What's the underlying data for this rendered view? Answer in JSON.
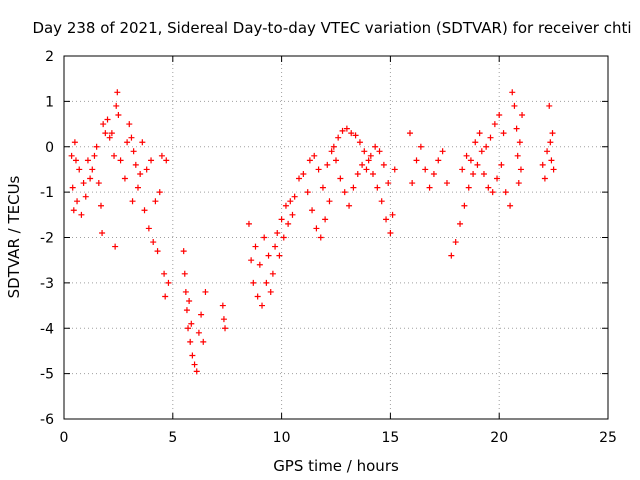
{
  "chart_data": {
    "type": "scatter",
    "title": "Day 238 of 2021, Sidereal Day-to-day VTEC variation (SDTVAR) for receiver chti",
    "xlabel": "GPS time / hours",
    "ylabel": "SDTVAR / TECUs",
    "xlim": [
      0,
      25
    ],
    "ylim": [
      -6,
      2
    ],
    "xticks": [
      0,
      5,
      10,
      15,
      20,
      25
    ],
    "yticks": [
      -6,
      -5,
      -4,
      -3,
      -2,
      -1,
      0,
      1,
      2
    ],
    "xtick_labels": [
      "0",
      "5",
      "10",
      "15",
      "20",
      "25"
    ],
    "ytick_labels": [
      "-6",
      "-5",
      "-4",
      "-3",
      "-2",
      "-1",
      "0",
      "1",
      "2"
    ],
    "grid": true,
    "marker": "+",
    "color": "#ff0000",
    "series": [
      {
        "name": "SDTVAR",
        "points": [
          [
            0.35,
            -0.2
          ],
          [
            0.4,
            -0.9
          ],
          [
            0.45,
            -1.4
          ],
          [
            0.5,
            0.1
          ],
          [
            0.55,
            -0.3
          ],
          [
            0.6,
            -1.2
          ],
          [
            0.7,
            -0.5
          ],
          [
            0.8,
            -1.5
          ],
          [
            0.9,
            -0.8
          ],
          [
            1.0,
            -1.1
          ],
          [
            1.1,
            -0.3
          ],
          [
            1.2,
            -0.7
          ],
          [
            1.3,
            -0.5
          ],
          [
            1.4,
            -0.2
          ],
          [
            1.5,
            0.0
          ],
          [
            1.6,
            -0.8
          ],
          [
            1.7,
            -1.3
          ],
          [
            1.75,
            -1.9
          ],
          [
            1.8,
            0.5
          ],
          [
            1.9,
            0.3
          ],
          [
            2.0,
            0.6
          ],
          [
            2.1,
            0.2
          ],
          [
            2.2,
            0.3
          ],
          [
            2.3,
            -0.2
          ],
          [
            2.35,
            -2.2
          ],
          [
            2.4,
            0.9
          ],
          [
            2.45,
            1.2
          ],
          [
            2.5,
            0.7
          ],
          [
            2.6,
            -0.3
          ],
          [
            2.8,
            -0.7
          ],
          [
            2.9,
            0.1
          ],
          [
            3.0,
            0.5
          ],
          [
            3.1,
            0.2
          ],
          [
            3.15,
            -1.2
          ],
          [
            3.2,
            -0.1
          ],
          [
            3.3,
            -0.4
          ],
          [
            3.4,
            -0.9
          ],
          [
            3.5,
            -0.6
          ],
          [
            3.6,
            0.1
          ],
          [
            3.7,
            -1.4
          ],
          [
            3.8,
            -0.5
          ],
          [
            3.9,
            -1.8
          ],
          [
            4.0,
            -0.3
          ],
          [
            4.1,
            -2.1
          ],
          [
            4.2,
            -1.2
          ],
          [
            4.3,
            -2.3
          ],
          [
            4.4,
            -1.0
          ],
          [
            4.5,
            -0.2
          ],
          [
            4.6,
            -2.8
          ],
          [
            4.65,
            -3.3
          ],
          [
            4.7,
            -0.3
          ],
          [
            4.8,
            -3.0
          ],
          [
            5.5,
            -2.3
          ],
          [
            5.55,
            -2.8
          ],
          [
            5.6,
            -3.2
          ],
          [
            5.65,
            -3.6
          ],
          [
            5.7,
            -4.0
          ],
          [
            5.75,
            -3.4
          ],
          [
            5.8,
            -4.3
          ],
          [
            5.85,
            -3.9
          ],
          [
            5.9,
            -4.6
          ],
          [
            6.0,
            -4.8
          ],
          [
            6.1,
            -4.95
          ],
          [
            6.2,
            -4.1
          ],
          [
            6.3,
            -3.7
          ],
          [
            6.4,
            -4.3
          ],
          [
            6.5,
            -3.2
          ],
          [
            7.3,
            -3.5
          ],
          [
            7.35,
            -3.8
          ],
          [
            7.4,
            -4.0
          ],
          [
            8.5,
            -1.7
          ],
          [
            8.6,
            -2.5
          ],
          [
            8.7,
            -3.0
          ],
          [
            8.8,
            -2.2
          ],
          [
            8.9,
            -3.3
          ],
          [
            9.0,
            -2.6
          ],
          [
            9.1,
            -3.5
          ],
          [
            9.2,
            -2.0
          ],
          [
            9.3,
            -3.0
          ],
          [
            9.4,
            -2.4
          ],
          [
            9.5,
            -3.2
          ],
          [
            9.6,
            -2.8
          ],
          [
            9.7,
            -2.2
          ],
          [
            9.8,
            -1.9
          ],
          [
            9.9,
            -2.4
          ],
          [
            10.0,
            -1.6
          ],
          [
            10.1,
            -2.0
          ],
          [
            10.2,
            -1.3
          ],
          [
            10.3,
            -1.7
          ],
          [
            10.4,
            -1.2
          ],
          [
            10.5,
            -1.5
          ],
          [
            10.6,
            -1.1
          ],
          [
            10.8,
            -0.7
          ],
          [
            11.0,
            -0.6
          ],
          [
            11.2,
            -1.0
          ],
          [
            11.4,
            -1.4
          ],
          [
            11.6,
            -1.8
          ],
          [
            11.8,
            -2.0
          ],
          [
            12.0,
            -1.6
          ],
          [
            12.2,
            -1.2
          ],
          [
            11.3,
            -0.3
          ],
          [
            11.5,
            -0.2
          ],
          [
            11.7,
            -0.5
          ],
          [
            11.9,
            -0.9
          ],
          [
            12.1,
            -0.4
          ],
          [
            12.3,
            -0.1
          ],
          [
            12.5,
            -0.3
          ],
          [
            12.7,
            -0.7
          ],
          [
            12.9,
            -1.0
          ],
          [
            13.1,
            -1.3
          ],
          [
            12.4,
            0.0
          ],
          [
            12.6,
            0.2
          ],
          [
            12.8,
            0.35
          ],
          [
            13.0,
            0.4
          ],
          [
            13.2,
            0.3
          ],
          [
            13.4,
            0.25
          ],
          [
            13.6,
            0.1
          ],
          [
            13.8,
            -0.1
          ],
          [
            14.0,
            -0.3
          ],
          [
            14.2,
            -0.6
          ],
          [
            13.3,
            -0.9
          ],
          [
            13.5,
            -0.6
          ],
          [
            13.7,
            -0.4
          ],
          [
            13.9,
            -0.5
          ],
          [
            14.1,
            -0.2
          ],
          [
            14.3,
            0.0
          ],
          [
            14.5,
            -0.1
          ],
          [
            14.7,
            -0.4
          ],
          [
            14.9,
            -0.8
          ],
          [
            15.1,
            -1.5
          ],
          [
            14.4,
            -0.9
          ],
          [
            14.6,
            -1.2
          ],
          [
            14.8,
            -1.6
          ],
          [
            15.0,
            -1.9
          ],
          [
            15.2,
            -0.5
          ],
          [
            15.9,
            0.3
          ],
          [
            16.0,
            -0.8
          ],
          [
            16.2,
            -0.3
          ],
          [
            16.4,
            0.0
          ],
          [
            16.6,
            -0.5
          ],
          [
            16.8,
            -0.9
          ],
          [
            17.0,
            -0.6
          ],
          [
            17.2,
            -0.3
          ],
          [
            17.4,
            -0.1
          ],
          [
            17.6,
            -0.8
          ],
          [
            17.8,
            -2.4
          ],
          [
            18.0,
            -2.1
          ],
          [
            18.2,
            -1.7
          ],
          [
            18.4,
            -1.3
          ],
          [
            18.6,
            -0.9
          ],
          [
            18.8,
            -0.6
          ],
          [
            19.0,
            -0.4
          ],
          [
            19.2,
            -0.1
          ],
          [
            19.4,
            0.0
          ],
          [
            19.6,
            0.2
          ],
          [
            19.8,
            0.5
          ],
          [
            20.0,
            0.7
          ],
          [
            20.2,
            0.3
          ],
          [
            18.3,
            -0.5
          ],
          [
            18.5,
            -0.2
          ],
          [
            18.7,
            -0.3
          ],
          [
            18.9,
            0.1
          ],
          [
            19.1,
            0.3
          ],
          [
            19.3,
            -0.6
          ],
          [
            19.5,
            -0.9
          ],
          [
            19.7,
            -1.0
          ],
          [
            19.9,
            -0.7
          ],
          [
            20.1,
            -0.4
          ],
          [
            20.3,
            -1.0
          ],
          [
            20.5,
            -1.3
          ],
          [
            20.6,
            1.2
          ],
          [
            20.7,
            0.9
          ],
          [
            20.8,
            0.4
          ],
          [
            20.85,
            -0.2
          ],
          [
            20.9,
            -0.8
          ],
          [
            20.95,
            0.1
          ],
          [
            21.0,
            -0.5
          ],
          [
            21.05,
            0.7
          ],
          [
            22.0,
            -0.4
          ],
          [
            22.1,
            -0.7
          ],
          [
            22.2,
            -0.1
          ],
          [
            22.3,
            0.9
          ],
          [
            22.35,
            0.1
          ],
          [
            22.4,
            -0.3
          ],
          [
            22.45,
            0.3
          ],
          [
            22.5,
            -0.5
          ]
        ]
      }
    ]
  }
}
